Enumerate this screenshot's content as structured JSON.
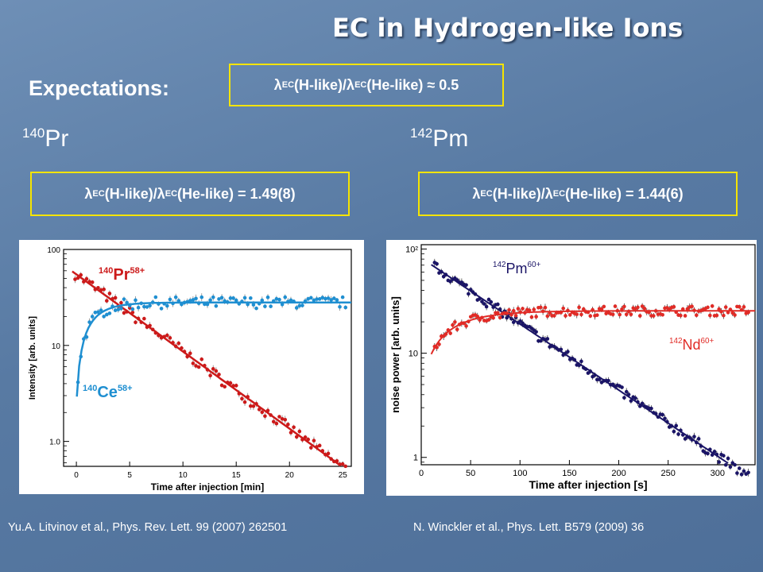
{
  "slide": {
    "title": "EC in Hydrogen-like Ions",
    "expectations_label": "Expectations:",
    "expectation_ratio": {
      "lambda": "λ",
      "sub": "EC",
      "h_like": "(H-like)/",
      "he_like": "(He-like) ≈ 0.5"
    },
    "left": {
      "nuclide_mass": "140",
      "nuclide_symbol": "Pr",
      "ratio": {
        "lambda": "λ",
        "sub": "EC",
        "h_like": "(H-like)/",
        "he_like": "(He-like) = 1.49(8)"
      },
      "reference": "Yu.A. Litvinov et al., Phys. Rev. Lett. 99 (2007) 262501"
    },
    "right": {
      "nuclide_mass": "142",
      "nuclide_symbol": "Pm",
      "ratio": {
        "lambda": "λ",
        "sub": "EC",
        "h_like": "(H-like)/",
        "he_like": "(He-like) = 1.44(6)"
      },
      "reference": "N. Winckler et al., Phys. Lett. B579 (2009) 36"
    }
  },
  "chart_data": [
    {
      "type": "scatter",
      "xlabel": "Time after injection [min]",
      "ylabel": "Intensity [arb. units]",
      "x_ticks": [
        "0",
        "5",
        "10",
        "15",
        "20",
        "25"
      ],
      "y_ticks": [
        "100",
        "10",
        "1.0"
      ],
      "y_scale": "log",
      "xlim": [
        -1.2,
        25.8
      ],
      "ylim": [
        0.55,
        100
      ],
      "series": [
        {
          "name_mass": "140",
          "name_symbol": "Pr",
          "name_charge": "58+",
          "color": "#cc1a1a",
          "model": "exp_decay",
          "fit": {
            "x0": 0,
            "y0": 55,
            "decay_per_unit": 0.185
          }
        },
        {
          "name_mass": "140",
          "name_symbol": "Ce",
          "name_charge": "58+",
          "color": "#1f8fd1",
          "model": "exp_growth",
          "fit": {
            "x0": 0,
            "y_start": 2.2,
            "y_sat": 28,
            "rate_per_unit": 0.62
          }
        }
      ]
    },
    {
      "type": "scatter",
      "xlabel": "Time after injection [s]",
      "ylabel": "noise power [arb. units]",
      "x_ticks": [
        "0",
        "50",
        "100",
        "150",
        "200",
        "250",
        "300"
      ],
      "y_ticks": [
        "10²",
        "10",
        "1"
      ],
      "y_scale": "log",
      "xlim": [
        0,
        338
      ],
      "ylim": [
        0.85,
        110
      ],
      "series": [
        {
          "name_mass": "142",
          "name_symbol": "Pm",
          "name_charge": "60+",
          "color": "#1a1466",
          "model": "exp_decay",
          "fit": {
            "x0": 0,
            "y0": 82,
            "decay_per_unit": 0.0146
          }
        },
        {
          "name_mass": "142",
          "name_symbol": "Nd",
          "name_charge": "60+",
          "color": "#e12b26",
          "model": "exp_growth",
          "fit": {
            "x0": 0,
            "y_start": 4.2,
            "y_sat": 25.5,
            "rate_per_unit": 0.03
          }
        }
      ]
    }
  ]
}
